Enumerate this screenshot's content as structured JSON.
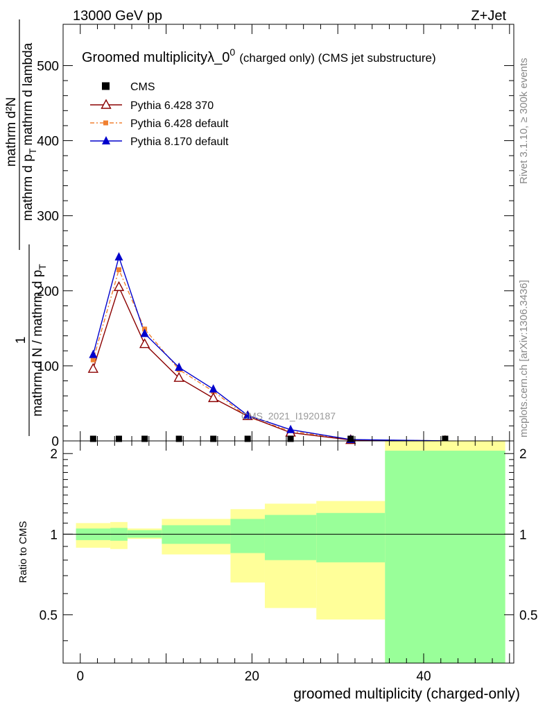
{
  "header": {
    "left": "13000 GeV pp",
    "right": "Z+Jet"
  },
  "title": {
    "main": "Groomed multiplicityλ_0",
    "superscript": "0",
    "suffix": "(charged only) (CMS jet substructure)"
  },
  "side_labels": {
    "rivet": "Rivet 3.1.10, ≥ 300k events",
    "mcplots": "mcplots.cern.ch [arXiv:1306.3436]"
  },
  "watermark": "CMS_2021_I1920187",
  "colors": {
    "cms": "#000000",
    "py6_370": "#8b0000",
    "py6_default": "#f08030",
    "py8_default": "#0000cc",
    "band_yellow": "#ffff99",
    "band_green": "#99ff99"
  },
  "chart_data": [
    {
      "type": "line",
      "panel": "main",
      "ylabel": {
        "numerator": "mathrm d²N",
        "denominator_top": "mathrm d p",
        "denominator_sub": "T",
        "denominator_rest": "mathrm d lambda",
        "prefix_num": "1",
        "prefix_den": "mathrm d N / mathrm d p",
        "prefix_den_sub": "T"
      },
      "xlim": [
        -2.0,
        50.5
      ],
      "ylim": [
        0,
        555
      ],
      "yticks": [
        0,
        100,
        200,
        300,
        400,
        500
      ],
      "ytick_labels": [
        "0",
        "100",
        "200",
        "300",
        "400",
        "500"
      ],
      "legend_position": "top-left",
      "x": [
        1.5,
        4.5,
        7.5,
        11.5,
        15.5,
        19.5,
        24.5,
        31.5,
        42.5
      ],
      "series": [
        {
          "name": "CMS",
          "marker": "square",
          "values": [
            0,
            0,
            0,
            0,
            0,
            0,
            0,
            0,
            0
          ]
        },
        {
          "name": "Pythia 6.428 370",
          "marker": "open-triangle",
          "values": [
            96,
            205,
            129,
            84,
            57,
            33,
            11,
            1.2,
            0.05
          ]
        },
        {
          "name": "Pythia 6.428 default",
          "marker": "square",
          "dashed": true,
          "values": [
            108,
            228,
            149,
            95,
            66,
            32,
            13,
            1.5,
            0.05
          ]
        },
        {
          "name": "Pythia 8.170 default",
          "marker": "filled-triangle",
          "values": [
            115,
            245,
            143,
            98,
            69,
            34,
            15,
            1.8,
            0.06
          ]
        }
      ]
    },
    {
      "type": "area",
      "panel": "ratio",
      "ylabel": "Ratio to CMS",
      "xlabel": "groomed multiplicity (charged-only)",
      "xlim": [
        -2.0,
        50.5
      ],
      "ylim": [
        0.33,
        2.23
      ],
      "xticks": [
        0,
        20,
        40
      ],
      "xtick_labels": [
        "0",
        "20",
        "40"
      ],
      "yticks": [
        0.5,
        1,
        2
      ],
      "ytick_labels": [
        "0.5",
        "1",
        "2"
      ],
      "bins": [
        {
          "x0": -0.5,
          "x1": 3.5,
          "yellow": [
            0.89,
            1.1
          ],
          "green": [
            0.95,
            1.05
          ]
        },
        {
          "x0": 3.5,
          "x1": 5.5,
          "yellow": [
            0.88,
            1.11
          ],
          "green": [
            0.945,
            1.055
          ]
        },
        {
          "x0": 5.5,
          "x1": 9.5,
          "yellow": [
            0.96,
            1.05
          ],
          "green": [
            0.97,
            1.035
          ]
        },
        {
          "x0": 9.5,
          "x1": 17.5,
          "yellow": [
            0.84,
            1.14
          ],
          "green": [
            0.92,
            1.08
          ]
        },
        {
          "x0": 17.5,
          "x1": 21.5,
          "yellow": [
            0.66,
            1.24
          ],
          "green": [
            0.85,
            1.14
          ]
        },
        {
          "x0": 21.5,
          "x1": 27.5,
          "yellow": [
            0.53,
            1.3
          ],
          "green": [
            0.8,
            1.18
          ]
        },
        {
          "x0": 27.5,
          "x1": 35.5,
          "yellow": [
            0.48,
            1.33
          ],
          "green": [
            0.785,
            1.2
          ]
        },
        {
          "x0": 35.5,
          "x1": 49.5,
          "yellow": [
            0.33,
            2.23
          ],
          "green": [
            0.33,
            2.05
          ]
        }
      ]
    }
  ]
}
